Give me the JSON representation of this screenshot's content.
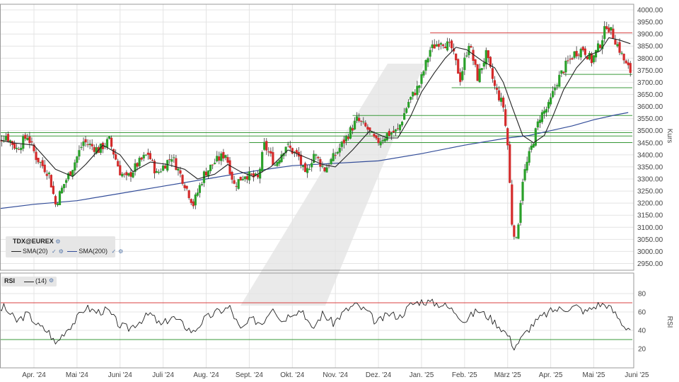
{
  "chart_data": [
    {
      "type": "candlestick",
      "instrument": "TDX@EUREX",
      "ylabel": "Kurs",
      "ylim": [
        2900,
        4000
      ],
      "y_ticks": [
        "4000.00",
        "3950.00",
        "3900.00",
        "3850.00",
        "3800.00",
        "3750.00",
        "3700.00",
        "3650.00",
        "3600.00",
        "3550.00",
        "3500.00",
        "3450.00",
        "3400.00",
        "3350.00",
        "3300.00",
        "3250.00",
        "3200.00",
        "3150.00",
        "3100.00",
        "3050.00",
        "3000.00",
        "2950.00"
      ],
      "x_ticks": [
        "Apr. '24",
        "Mai '24",
        "Juni '24",
        "Juli '24",
        "Aug. '24",
        "Sept. '24",
        "Okt. '24",
        "Nov. '24",
        "Dez. '24",
        "Jan. '25",
        "Feb. '25",
        "März '25",
        "Apr. '25",
        "Mai '25",
        "Juni '25"
      ],
      "legend": [
        {
          "label": "SMA(20)",
          "color": "#222222"
        },
        {
          "label": "SMA(200)",
          "color": "#334d99"
        }
      ],
      "horizontal_levels": [
        {
          "value": 3905,
          "color": "#d94040",
          "from_month": 10.2
        },
        {
          "value": 3733,
          "color": "#3a9a3a",
          "from_month": 13.3
        },
        {
          "value": 3678,
          "color": "#3a9a3a",
          "from_month": 10.7
        },
        {
          "value": 3563,
          "color": "#3a9a3a",
          "from_month": 8.4
        },
        {
          "value": 3492,
          "color": "#3a9a3a",
          "from_month": 0
        },
        {
          "value": 3478,
          "color": "#3a9a3a",
          "from_month": 0
        },
        {
          "value": 3451,
          "color": "#3a9a3a",
          "from_month": 6.0
        }
      ],
      "close_path": [
        [
          0,
          3440
        ],
        [
          0.35,
          3480
        ],
        [
          0.6,
          3425
        ],
        [
          0.85,
          3480
        ],
        [
          1.05,
          3390
        ],
        [
          1.35,
          3320
        ],
        [
          1.5,
          3195
        ],
        [
          1.7,
          3280
        ],
        [
          1.9,
          3350
        ],
        [
          2.15,
          3455
        ],
        [
          2.5,
          3420
        ],
        [
          2.75,
          3460
        ],
        [
          3.0,
          3330
        ],
        [
          3.15,
          3300
        ],
        [
          3.4,
          3360
        ],
        [
          3.65,
          3405
        ],
        [
          3.85,
          3320
        ],
        [
          4.2,
          3395
        ],
        [
          4.5,
          3280
        ],
        [
          4.7,
          3195
        ],
        [
          4.95,
          3320
        ],
        [
          5.2,
          3370
        ],
        [
          5.45,
          3405
        ],
        [
          5.65,
          3275
        ],
        [
          5.9,
          3320
        ],
        [
          6.2,
          3300
        ],
        [
          6.35,
          3440
        ],
        [
          6.6,
          3360
        ],
        [
          6.85,
          3440
        ],
        [
          7.15,
          3390
        ],
        [
          7.3,
          3310
        ],
        [
          7.5,
          3405
        ],
        [
          7.75,
          3340
        ],
        [
          8.0,
          3400
        ],
        [
          8.3,
          3485
        ],
        [
          8.5,
          3545
        ],
        [
          8.75,
          3505
        ],
        [
          8.95,
          3450
        ],
        [
          9.2,
          3485
        ],
        [
          9.45,
          3500
        ],
        [
          9.7,
          3620
        ],
        [
          9.95,
          3690
        ],
        [
          10.2,
          3835
        ],
        [
          10.45,
          3875
        ],
        [
          10.7,
          3840
        ],
        [
          10.9,
          3715
        ],
        [
          11.1,
          3865
        ],
        [
          11.3,
          3720
        ],
        [
          11.5,
          3815
        ],
        [
          11.7,
          3680
        ],
        [
          11.9,
          3600
        ],
        [
          12.0,
          3440
        ],
        [
          12.1,
          3120
        ],
        [
          12.2,
          3040
        ],
        [
          12.35,
          3300
        ],
        [
          12.55,
          3430
        ],
        [
          12.75,
          3560
        ],
        [
          12.95,
          3600
        ],
        [
          13.15,
          3705
        ],
        [
          13.35,
          3770
        ],
        [
          13.55,
          3820
        ],
        [
          13.75,
          3840
        ],
        [
          13.95,
          3790
        ],
        [
          14.15,
          3860
        ],
        [
          14.3,
          3940
        ],
        [
          14.45,
          3895
        ],
        [
          14.6,
          3835
        ],
        [
          14.75,
          3770
        ],
        [
          14.85,
          3745
        ]
      ],
      "sma20_path": [
        [
          0,
          3470
        ],
        [
          0.5,
          3450
        ],
        [
          1.0,
          3440
        ],
        [
          1.5,
          3340
        ],
        [
          1.9,
          3310
        ],
        [
          2.2,
          3360
        ],
        [
          2.6,
          3440
        ],
        [
          3.0,
          3400
        ],
        [
          3.3,
          3330
        ],
        [
          3.7,
          3370
        ],
        [
          4.1,
          3360
        ],
        [
          4.5,
          3340
        ],
        [
          4.8,
          3300
        ],
        [
          5.2,
          3320
        ],
        [
          5.5,
          3360
        ],
        [
          5.8,
          3330
        ],
        [
          6.1,
          3310
        ],
        [
          6.5,
          3350
        ],
        [
          6.9,
          3420
        ],
        [
          7.3,
          3390
        ],
        [
          7.7,
          3360
        ],
        [
          8.0,
          3350
        ],
        [
          8.4,
          3420
        ],
        [
          8.8,
          3500
        ],
        [
          9.2,
          3470
        ],
        [
          9.45,
          3470
        ],
        [
          9.75,
          3560
        ],
        [
          10.0,
          3660
        ],
        [
          10.3,
          3740
        ],
        [
          10.55,
          3800
        ],
        [
          10.8,
          3845
        ],
        [
          11.05,
          3835
        ],
        [
          11.4,
          3790
        ],
        [
          11.7,
          3760
        ],
        [
          11.9,
          3700
        ],
        [
          12.1,
          3600
        ],
        [
          12.35,
          3480
        ],
        [
          12.6,
          3450
        ],
        [
          12.85,
          3480
        ],
        [
          13.05,
          3560
        ],
        [
          13.3,
          3670
        ],
        [
          13.6,
          3760
        ],
        [
          13.85,
          3810
        ],
        [
          14.15,
          3830
        ],
        [
          14.35,
          3885
        ],
        [
          14.6,
          3875
        ],
        [
          14.85,
          3860
        ]
      ],
      "sma200_path": [
        [
          0,
          3173
        ],
        [
          1.0,
          3195
        ],
        [
          2.0,
          3210
        ],
        [
          3.0,
          3240
        ],
        [
          4.0,
          3270
        ],
        [
          5.0,
          3300
        ],
        [
          6.0,
          3330
        ],
        [
          7.0,
          3355
        ],
        [
          8.0,
          3365
        ],
        [
          9.0,
          3375
        ],
        [
          10.0,
          3405
        ],
        [
          11.0,
          3440
        ],
        [
          12.0,
          3470
        ],
        [
          12.5,
          3480
        ],
        [
          13.0,
          3500
        ],
        [
          13.5,
          3520
        ],
        [
          14.0,
          3545
        ],
        [
          14.5,
          3565
        ],
        [
          14.8,
          3575
        ]
      ]
    },
    {
      "type": "line",
      "name": "RSI",
      "period": "(14)",
      "ylabel": "RSI",
      "ylim": [
        8,
        89
      ],
      "y_ticks": [
        "80",
        "60",
        "40",
        "20"
      ],
      "levels": [
        {
          "value": 70,
          "color": "#d94040"
        },
        {
          "value": 30,
          "color": "#3a9a3a"
        }
      ],
      "path": [
        [
          0,
          56
        ],
        [
          0.3,
          65
        ],
        [
          0.6,
          50
        ],
        [
          0.85,
          58
        ],
        [
          1.1,
          45
        ],
        [
          1.35,
          38
        ],
        [
          1.5,
          25
        ],
        [
          1.7,
          38
        ],
        [
          1.95,
          50
        ],
        [
          2.2,
          65
        ],
        [
          2.45,
          60
        ],
        [
          2.7,
          62
        ],
        [
          3.0,
          45
        ],
        [
          3.2,
          42
        ],
        [
          3.45,
          50
        ],
        [
          3.7,
          58
        ],
        [
          3.95,
          45
        ],
        [
          4.2,
          55
        ],
        [
          4.5,
          45
        ],
        [
          4.7,
          38
        ],
        [
          4.95,
          52
        ],
        [
          5.25,
          60
        ],
        [
          5.55,
          65
        ],
        [
          5.8,
          40
        ],
        [
          6.05,
          52
        ],
        [
          6.3,
          48
        ],
        [
          6.55,
          67
        ],
        [
          6.75,
          50
        ],
        [
          7.0,
          60
        ],
        [
          7.25,
          62
        ],
        [
          7.45,
          40
        ],
        [
          7.7,
          58
        ],
        [
          7.95,
          48
        ],
        [
          8.2,
          60
        ],
        [
          8.45,
          68
        ],
        [
          8.75,
          60
        ],
        [
          8.95,
          48
        ],
        [
          9.25,
          58
        ],
        [
          9.5,
          55
        ],
        [
          9.75,
          68
        ],
        [
          10.0,
          72
        ],
        [
          10.25,
          70
        ],
        [
          10.5,
          68
        ],
        [
          10.8,
          60
        ],
        [
          11.0,
          50
        ],
        [
          11.3,
          62
        ],
        [
          11.55,
          55
        ],
        [
          11.8,
          45
        ],
        [
          12.0,
          35
        ],
        [
          12.15,
          22
        ],
        [
          12.3,
          30
        ],
        [
          12.55,
          45
        ],
        [
          12.8,
          55
        ],
        [
          13.05,
          62
        ],
        [
          13.35,
          64
        ],
        [
          13.6,
          66
        ],
        [
          13.8,
          60
        ],
        [
          14.1,
          68
        ],
        [
          14.3,
          68
        ],
        [
          14.5,
          58
        ],
        [
          14.7,
          45
        ],
        [
          14.85,
          42
        ]
      ]
    }
  ],
  "legend_label": "TDX@EUREX",
  "rsi_label": "RSI",
  "rsi_period": "(14)",
  "colors": {
    "up": "#2aa02a",
    "down": "#d42b2b",
    "sma20": "#222222",
    "sma200": "#334d99",
    "grid": "#e4e4e4",
    "watermark": "#e3e3e3"
  }
}
